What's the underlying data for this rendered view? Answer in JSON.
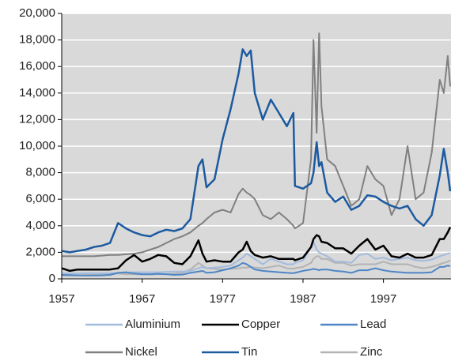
{
  "chart_data": {
    "type": "line",
    "legend": "bottom",
    "grid": true,
    "xlim": [
      1957,
      2005.4
    ],
    "xticks": [
      1957,
      1967,
      1977,
      1987,
      1997
    ],
    "ylim": [
      0,
      20000
    ],
    "yticks": [
      0,
      {
        "value": 2000,
        "label": "2,000"
      },
      {
        "value": 4000,
        "label": "4,000"
      },
      {
        "value": 6000,
        "label": "6,000"
      },
      {
        "value": 8000,
        "label": "8,000"
      },
      {
        "value": 10000,
        "label": "10,000"
      },
      {
        "value": 12000,
        "label": "12,000"
      },
      {
        "value": 14000,
        "label": "14,000"
      },
      {
        "value": 16000,
        "label": "16,000"
      },
      {
        "value": 18000,
        "label": "18,000"
      },
      {
        "value": 20000,
        "label": "20,000"
      }
    ],
    "x": [
      1957,
      1958,
      1959,
      1960,
      1961,
      1962,
      1963,
      1964,
      1965,
      1966,
      1967,
      1968,
      1969,
      1970,
      1971,
      1972,
      1973,
      1974,
      1974.5,
      1975,
      1976,
      1977,
      1978,
      1979,
      1979.5,
      1980,
      1980.5,
      1981,
      1982,
      1983,
      1984,
      1985,
      1985.8,
      1986,
      1987,
      1988,
      1988.3,
      1988.7,
      1989,
      1989.3,
      1990,
      1991,
      1992,
      1993,
      1994,
      1995,
      1996,
      1997,
      1998,
      1999,
      2000,
      2001,
      2002,
      2003,
      2004,
      2004.5,
      2005,
      2005.3
    ],
    "series": [
      {
        "name": "Aluminium",
        "color": "#a3bbdd",
        "values": [
          400,
          400,
          400,
          420,
          420,
          420,
          430,
          450,
          480,
          500,
          500,
          500,
          500,
          520,
          550,
          550,
          600,
          800,
          900,
          800,
          850,
          900,
          1000,
          1400,
          1600,
          1900,
          1700,
          1500,
          1100,
          1500,
          1300,
          1100,
          1100,
          1200,
          1400,
          2400,
          2800,
          2200,
          2000,
          1900,
          1700,
          1300,
          1300,
          1200,
          1800,
          1900,
          1500,
          1600,
          1400,
          1500,
          1600,
          1400,
          1350,
          1450,
          1700,
          1800,
          1900,
          1950
        ]
      },
      {
        "name": "Copper",
        "color": "#000000",
        "values": [
          800,
          600,
          700,
          700,
          700,
          700,
          700,
          800,
          1400,
          1800,
          1300,
          1500,
          1800,
          1700,
          1200,
          1100,
          1700,
          2900,
          1900,
          1300,
          1400,
          1300,
          1300,
          2000,
          2200,
          2800,
          2100,
          1800,
          1600,
          1700,
          1500,
          1500,
          1500,
          1400,
          1600,
          2400,
          3000,
          3300,
          3200,
          2800,
          2700,
          2300,
          2300,
          1900,
          2500,
          3000,
          2200,
          2500,
          1700,
          1600,
          1900,
          1600,
          1600,
          1800,
          3000,
          3000,
          3500,
          3900
        ]
      },
      {
        "name": "Lead",
        "color": "#4f86c6",
        "values": [
          300,
          280,
          260,
          250,
          250,
          260,
          300,
          450,
          500,
          400,
          350,
          350,
          380,
          350,
          300,
          320,
          450,
          550,
          600,
          450,
          500,
          650,
          800,
          1000,
          1200,
          1100,
          900,
          700,
          600,
          550,
          500,
          450,
          420,
          450,
          600,
          700,
          750,
          700,
          650,
          700,
          700,
          600,
          550,
          450,
          650,
          650,
          800,
          650,
          550,
          500,
          450,
          450,
          450,
          500,
          900,
          900,
          1000,
          950
        ]
      },
      {
        "name": "Nickel",
        "color": "#808080",
        "values": [
          1700,
          1700,
          1700,
          1700,
          1700,
          1750,
          1800,
          1800,
          1850,
          1900,
          2000,
          2200,
          2400,
          2700,
          3000,
          3200,
          3500,
          4000,
          4200,
          4500,
          5000,
          5200,
          5000,
          6400,
          6800,
          6500,
          6300,
          6000,
          4800,
          4500,
          5000,
          4500,
          4000,
          3800,
          4200,
          9000,
          18000,
          11000,
          18500,
          13000,
          9000,
          8500,
          7000,
          5500,
          6000,
          8500,
          7500,
          7000,
          4800,
          6000,
          10000,
          6000,
          6500,
          9500,
          15000,
          14000,
          16800,
          14500
        ]
      },
      {
        "name": "Tin",
        "color": "#1c5aa0",
        "values": [
          2100,
          2000,
          2100,
          2200,
          2400,
          2500,
          2700,
          4200,
          3800,
          3500,
          3300,
          3200,
          3500,
          3700,
          3600,
          3800,
          4500,
          8500,
          9000,
          6900,
          7500,
          10500,
          12800,
          15500,
          17300,
          16800,
          17200,
          14000,
          12000,
          13500,
          12500,
          11500,
          12500,
          7000,
          6800,
          7200,
          8000,
          10300,
          8500,
          8800,
          6500,
          5800,
          6200,
          5200,
          5500,
          6300,
          6200,
          5800,
          5500,
          5300,
          5500,
          4500,
          4000,
          4800,
          7800,
          9800,
          8000,
          6600
        ]
      },
      {
        "name": "Zinc",
        "color": "#b3b3b3",
        "values": [
          250,
          250,
          260,
          280,
          300,
          300,
          350,
          400,
          350,
          350,
          330,
          330,
          350,
          350,
          400,
          450,
          700,
          1200,
          1000,
          800,
          750,
          700,
          750,
          800,
          850,
          850,
          900,
          850,
          800,
          900,
          1000,
          800,
          750,
          800,
          900,
          1200,
          1500,
          1700,
          1700,
          1500,
          1500,
          1200,
          1200,
          1000,
          1100,
          1100,
          1100,
          1300,
          1100,
          1100,
          1100,
          900,
          800,
          900,
          1100,
          1200,
          1300,
          1400
        ]
      }
    ]
  }
}
